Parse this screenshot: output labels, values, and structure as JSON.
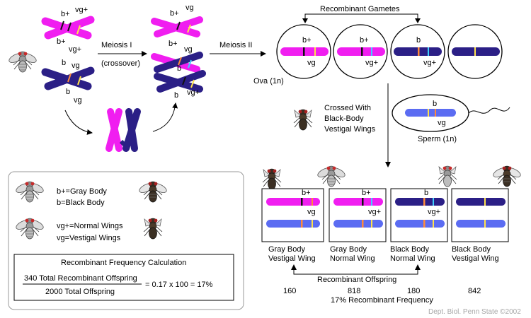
{
  "colors": {
    "magenta": "#f01ef0",
    "navy": "#2b1f86",
    "light_blue": "#5b6cf2",
    "band_black": "#111111",
    "band_yellow": "#ffe24a",
    "band_orange": "#ff8a3a",
    "band_cyan": "#3fd0ff"
  },
  "icons": [
    "fruit-fly-gray-icon",
    "fruit-fly-black-icon",
    "fruit-fly-vestigial-icon",
    "curved-arrow-icon"
  ],
  "labels": {
    "meiosis1": "Meiosis I",
    "crossover": "(crossover)",
    "meiosis2": "Meiosis II",
    "recombinant_gametes": "Recombinant Gametes",
    "ova": "Ova (1n)",
    "crossed_with": "Crossed With",
    "black_body": "Black-Body",
    "vestigal_wings": "Vestigal Wings",
    "sperm": "Sperm (1n)",
    "recombinant_offspring": "Recombinant Offspring",
    "recombinant_frequency": "17% Recombinant Frequency",
    "credit": "Dept. Biol. Penn State ©2002"
  },
  "alleles": {
    "b_plus": "b+",
    "vg_plus": "vg+",
    "b": "b",
    "vg": "vg"
  },
  "legend": {
    "gray_body": "b+=Gray Body",
    "black_body": "b=Black Body",
    "normal_wings": "vg+=Normal Wings",
    "vestigal_wings": "vg=Vestigal Wings",
    "calc_title": "Recombinant Frequency Calculation",
    "calc_numerator": "340 Total Recombinant Offspring",
    "calc_denominator": "2000 Total Offspring",
    "calc_result": "= 0.17 x 100 = 17%"
  },
  "offspring": [
    {
      "line1": "Gray Body",
      "line2": "Vestigal Wing",
      "count": "160"
    },
    {
      "line1": "Gray Body",
      "line2": "Normal Wing",
      "count": "818"
    },
    {
      "line1": "Black Body",
      "line2": "Normal Wing",
      "count": "180"
    },
    {
      "line1": "Black Body",
      "line2": "Vestigal Wing",
      "count": "842"
    }
  ]
}
